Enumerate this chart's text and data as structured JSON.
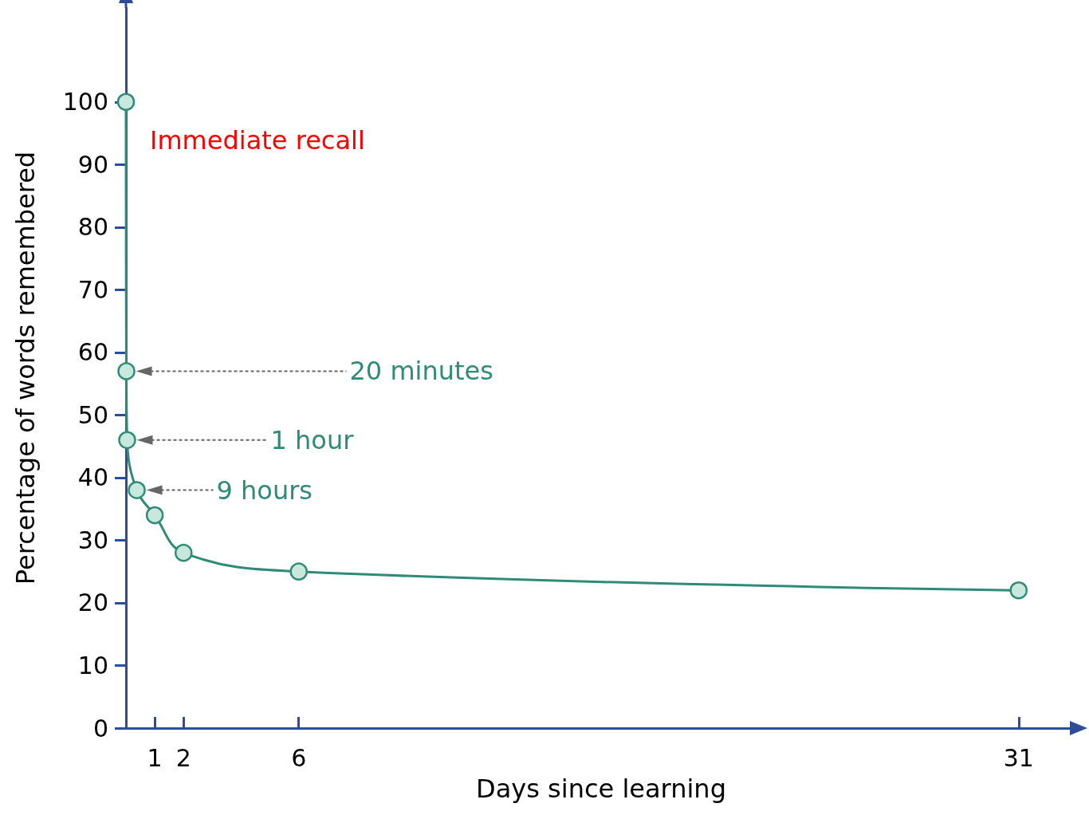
{
  "chart_data": {
    "type": "line",
    "xlabel": "Days since learning",
    "ylabel": "Percentage of words remembered",
    "x": [
      0,
      0.0139,
      0.0417,
      0.375,
      1,
      2,
      6,
      31
    ],
    "series": [
      {
        "color": "#2e8b77",
        "values": [
          100,
          57,
          46,
          38,
          34,
          28,
          25,
          22
        ]
      }
    ],
    "xlim": [
      0,
      33
    ],
    "xticks": [
      1,
      2,
      6,
      31
    ],
    "ylim": [
      0,
      115
    ],
    "yticks": [
      0,
      10,
      20,
      30,
      40,
      50,
      60,
      70,
      80,
      90,
      100
    ],
    "grid": false,
    "marker": "circle",
    "line_style": "solid",
    "annotations": [
      {
        "text": "Immediate recall",
        "x": 0,
        "y": 100
      },
      "20 minutes",
      "1 hour",
      "9 hours"
    ]
  }
}
